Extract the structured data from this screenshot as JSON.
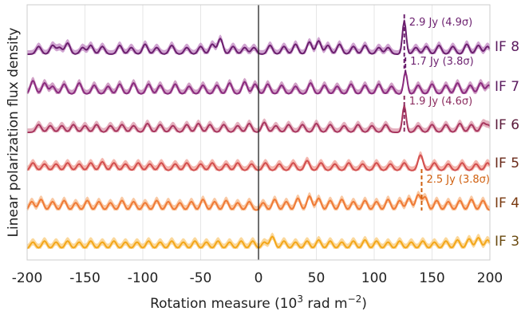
{
  "chart_data": {
    "type": "line",
    "xlabel": "Rotation measure (10",
    "xlabel_sup3": "3",
    "xlabel_mid": " rad m",
    "xlabel_sup": "−2",
    "xlabel_end": ")",
    "ylabel": "Linear polarization flux density",
    "xlim": [
      -200,
      200
    ],
    "x_ticks": [
      -200,
      -150,
      -100,
      -50,
      0,
      50,
      100,
      150,
      200
    ],
    "x_tick_labels": [
      "-200",
      "-150",
      "-100",
      "-50",
      "0",
      "50",
      "100",
      "150",
      "200"
    ],
    "grid": true,
    "vertical_reference_x": 0,
    "series": [
      {
        "name": "IF 8",
        "color": "#6b1f6e",
        "fill": "#c894c9",
        "label_color": "#5a1a5e",
        "peaks": [
          [
            -190,
            0.35
          ],
          [
            -178,
            0.4
          ],
          [
            -172,
            0.3
          ],
          [
            -165,
            0.5
          ],
          [
            -152,
            0.3
          ],
          [
            -145,
            0.4
          ],
          [
            -135,
            0.35
          ],
          [
            -120,
            0.4
          ],
          [
            -110,
            0.3
          ],
          [
            -98,
            0.45
          ],
          [
            -88,
            0.3
          ],
          [
            -75,
            0.4
          ],
          [
            -62,
            0.3
          ],
          [
            -50,
            0.35
          ],
          [
            -40,
            0.45
          ],
          [
            -33,
            0.7
          ],
          [
            -22,
            0.35
          ],
          [
            -12,
            0.3
          ],
          [
            -4,
            0.3
          ],
          [
            10,
            0.4
          ],
          [
            22,
            0.35
          ],
          [
            32,
            0.45
          ],
          [
            44,
            0.55
          ],
          [
            52,
            0.6
          ],
          [
            60,
            0.4
          ],
          [
            70,
            0.45
          ],
          [
            82,
            0.35
          ],
          [
            92,
            0.4
          ],
          [
            104,
            0.3
          ],
          [
            112,
            0.3
          ],
          [
            126,
            1.5
          ],
          [
            136,
            0.3
          ],
          [
            145,
            0.35
          ],
          [
            156,
            0.4
          ],
          [
            168,
            0.35
          ],
          [
            180,
            0.45
          ],
          [
            190,
            0.4
          ],
          [
            198,
            0.35
          ]
        ]
      },
      {
        "name": "IF 7",
        "color": "#8a2b7e",
        "fill": "#c98fbc",
        "label_color": "#5a1a5e",
        "peaks": [
          [
            -195,
            0.6
          ],
          [
            -185,
            0.5
          ],
          [
            -178,
            0.35
          ],
          [
            -168,
            0.45
          ],
          [
            -155,
            0.5
          ],
          [
            -142,
            0.4
          ],
          [
            -130,
            0.35
          ],
          [
            -120,
            0.45
          ],
          [
            -108,
            0.5
          ],
          [
            -95,
            0.45
          ],
          [
            -85,
            0.4
          ],
          [
            -72,
            0.45
          ],
          [
            -60,
            0.35
          ],
          [
            -48,
            0.4
          ],
          [
            -36,
            0.4
          ],
          [
            -25,
            0.5
          ],
          [
            -12,
            0.55
          ],
          [
            -3,
            0.45
          ],
          [
            8,
            0.45
          ],
          [
            20,
            0.4
          ],
          [
            32,
            0.35
          ],
          [
            45,
            0.5
          ],
          [
            57,
            0.4
          ],
          [
            68,
            0.35
          ],
          [
            80,
            0.45
          ],
          [
            92,
            0.4
          ],
          [
            104,
            0.45
          ],
          [
            115,
            0.35
          ],
          [
            127,
            1.0
          ],
          [
            138,
            0.4
          ],
          [
            150,
            0.45
          ],
          [
            162,
            0.4
          ],
          [
            172,
            0.5
          ],
          [
            183,
            0.4
          ],
          [
            192,
            0.5
          ],
          [
            199,
            0.4
          ]
        ]
      },
      {
        "name": "IF 6",
        "color": "#a8365f",
        "fill": "#e0a3b4",
        "label_color": "#5a1a3a",
        "peaks": [
          [
            -190,
            0.35
          ],
          [
            -180,
            0.3
          ],
          [
            -170,
            0.3
          ],
          [
            -160,
            0.35
          ],
          [
            -150,
            0.3
          ],
          [
            -140,
            0.35
          ],
          [
            -128,
            0.3
          ],
          [
            -118,
            0.35
          ],
          [
            -108,
            0.3
          ],
          [
            -96,
            0.4
          ],
          [
            -85,
            0.35
          ],
          [
            -74,
            0.3
          ],
          [
            -62,
            0.35
          ],
          [
            -52,
            0.4
          ],
          [
            -42,
            0.35
          ],
          [
            -30,
            0.35
          ],
          [
            -18,
            0.3
          ],
          [
            -8,
            0.4
          ],
          [
            5,
            0.45
          ],
          [
            15,
            0.3
          ],
          [
            26,
            0.35
          ],
          [
            38,
            0.35
          ],
          [
            50,
            0.4
          ],
          [
            62,
            0.35
          ],
          [
            74,
            0.3
          ],
          [
            86,
            0.35
          ],
          [
            98,
            0.3
          ],
          [
            110,
            0.35
          ],
          [
            126,
            1.2
          ],
          [
            138,
            0.3
          ],
          [
            150,
            0.35
          ],
          [
            162,
            0.35
          ],
          [
            174,
            0.4
          ],
          [
            184,
            0.35
          ],
          [
            194,
            0.4
          ],
          [
            199,
            0.3
          ]
        ]
      },
      {
        "name": "IF 5",
        "color": "#d24e4e",
        "fill": "#f2a9a0",
        "label_color": "#6a2a1a",
        "peaks": [
          [
            -195,
            0.35
          ],
          [
            -185,
            0.3
          ],
          [
            -175,
            0.3
          ],
          [
            -165,
            0.35
          ],
          [
            -155,
            0.3
          ],
          [
            -145,
            0.35
          ],
          [
            -135,
            0.4
          ],
          [
            -125,
            0.35
          ],
          [
            -115,
            0.3
          ],
          [
            -104,
            0.35
          ],
          [
            -94,
            0.3
          ],
          [
            -84,
            0.35
          ],
          [
            -72,
            0.3
          ],
          [
            -62,
            0.35
          ],
          [
            -50,
            0.3
          ],
          [
            -40,
            0.35
          ],
          [
            -28,
            0.3
          ],
          [
            -18,
            0.35
          ],
          [
            -6,
            0.3
          ],
          [
            6,
            0.35
          ],
          [
            18,
            0.3
          ],
          [
            30,
            0.35
          ],
          [
            42,
            0.45
          ],
          [
            54,
            0.35
          ],
          [
            66,
            0.3
          ],
          [
            78,
            0.35
          ],
          [
            90,
            0.3
          ],
          [
            102,
            0.35
          ],
          [
            114,
            0.3
          ],
          [
            126,
            0.35
          ],
          [
            140,
            0.7
          ],
          [
            152,
            0.35
          ],
          [
            164,
            0.3
          ],
          [
            176,
            0.35
          ],
          [
            188,
            0.3
          ],
          [
            198,
            0.35
          ]
        ]
      },
      {
        "name": "IF 4",
        "color": "#ef7a36",
        "fill": "#f8bf94",
        "label_color": "#7a3a10",
        "peaks": [
          [
            -196,
            0.4
          ],
          [
            -188,
            0.5
          ],
          [
            -178,
            0.4
          ],
          [
            -168,
            0.45
          ],
          [
            -158,
            0.35
          ],
          [
            -148,
            0.45
          ],
          [
            -138,
            0.4
          ],
          [
            -128,
            0.35
          ],
          [
            -118,
            0.45
          ],
          [
            -108,
            0.4
          ],
          [
            -98,
            0.35
          ],
          [
            -88,
            0.45
          ],
          [
            -78,
            0.4
          ],
          [
            -68,
            0.35
          ],
          [
            -58,
            0.4
          ],
          [
            -48,
            0.5
          ],
          [
            -38,
            0.4
          ],
          [
            -28,
            0.45
          ],
          [
            -18,
            0.35
          ],
          [
            -8,
            0.4
          ],
          [
            4,
            0.35
          ],
          [
            14,
            0.5
          ],
          [
            24,
            0.4
          ],
          [
            34,
            0.55
          ],
          [
            44,
            0.65
          ],
          [
            52,
            0.55
          ],
          [
            62,
            0.45
          ],
          [
            72,
            0.5
          ],
          [
            82,
            0.4
          ],
          [
            92,
            0.45
          ],
          [
            102,
            0.4
          ],
          [
            112,
            0.5
          ],
          [
            122,
            0.45
          ],
          [
            130,
            0.55
          ],
          [
            138,
            0.7
          ],
          [
            144,
            0.6
          ],
          [
            154,
            0.45
          ],
          [
            164,
            0.4
          ],
          [
            174,
            0.45
          ],
          [
            184,
            0.5
          ],
          [
            194,
            0.45
          ]
        ]
      },
      {
        "name": "IF 3",
        "color": "#f3a71a",
        "fill": "#fad18a",
        "label_color": "#6a4a10",
        "peaks": [
          [
            -195,
            0.3
          ],
          [
            -185,
            0.35
          ],
          [
            -175,
            0.3
          ],
          [
            -165,
            0.35
          ],
          [
            -155,
            0.3
          ],
          [
            -145,
            0.35
          ],
          [
            -135,
            0.3
          ],
          [
            -125,
            0.35
          ],
          [
            -115,
            0.3
          ],
          [
            -105,
            0.3
          ],
          [
            -95,
            0.35
          ],
          [
            -85,
            0.3
          ],
          [
            -75,
            0.35
          ],
          [
            -65,
            0.3
          ],
          [
            -55,
            0.35
          ],
          [
            -45,
            0.3
          ],
          [
            -35,
            0.35
          ],
          [
            -25,
            0.3
          ],
          [
            -15,
            0.35
          ],
          [
            -5,
            0.35
          ],
          [
            5,
            0.3
          ],
          [
            12,
            0.55
          ],
          [
            22,
            0.35
          ],
          [
            32,
            0.3
          ],
          [
            42,
            0.35
          ],
          [
            52,
            0.4
          ],
          [
            62,
            0.35
          ],
          [
            72,
            0.3
          ],
          [
            82,
            0.35
          ],
          [
            92,
            0.4
          ],
          [
            102,
            0.35
          ],
          [
            112,
            0.3
          ],
          [
            122,
            0.35
          ],
          [
            132,
            0.3
          ],
          [
            142,
            0.35
          ],
          [
            152,
            0.3
          ],
          [
            162,
            0.35
          ],
          [
            172,
            0.4
          ],
          [
            182,
            0.45
          ],
          [
            190,
            0.5
          ],
          [
            198,
            0.4
          ]
        ]
      }
    ],
    "annotations": [
      {
        "series": "IF 8",
        "x": 126,
        "text": "2.9 Jy (4.9σ)",
        "color": "#6b1f6e"
      },
      {
        "series": "IF 7",
        "x": 127,
        "text": "1.7 Jy (3.8σ)",
        "color": "#6b1f6e"
      },
      {
        "series": "IF 6",
        "x": 126,
        "text": "1.9 Jy (4.6σ)",
        "color": "#8a2b5e"
      },
      {
        "series": "IF 4",
        "x": 141,
        "text": "2.5 Jy (3.8σ)",
        "color": "#d06010"
      }
    ]
  }
}
